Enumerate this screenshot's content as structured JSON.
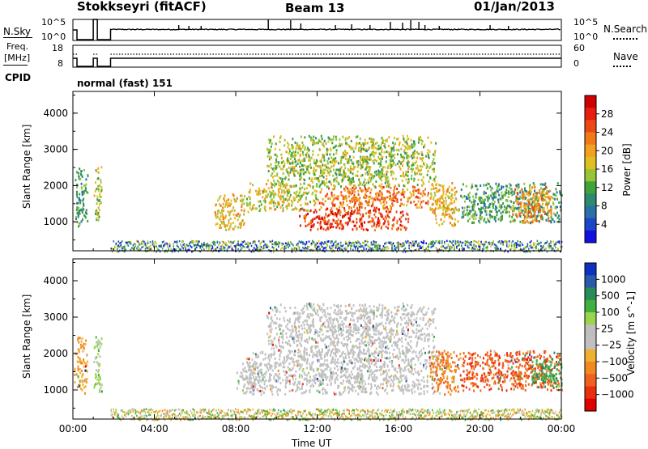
{
  "chart_data": [
    {
      "type": "line",
      "station": "Stokkseyri (fitACF)",
      "beam": "Beam 13",
      "date": "01/Jan/2013",
      "left_label": "N.Sky",
      "left_ticks": [
        "10^5",
        "10^0"
      ],
      "right_label": "N.Search",
      "right_ticks": [
        "10^5",
        "10^0"
      ],
      "gaps_hours": [
        [
          0.0,
          0.2
        ],
        [
          1.0,
          1.85
        ]
      ]
    },
    {
      "type": "line",
      "left_label_lines": [
        "Freq.",
        "[MHz]"
      ],
      "left_ticks": [
        "18",
        "8"
      ],
      "right_label": "Nave",
      "right_ticks": [
        "60",
        "0"
      ],
      "gaps_hours": [
        [
          0.0,
          0.2
        ],
        [
          1.0,
          1.85
        ]
      ]
    },
    {
      "type": "table",
      "label": "CPID",
      "value": "normal (fast) 151"
    },
    {
      "type": "heatmap",
      "quantity": "power",
      "ylabel": "Slant Range [km]",
      "yticks": [
        "1000",
        "2000",
        "3000",
        "4000"
      ],
      "ylim": [
        200,
        4600
      ],
      "xlim_hours": [
        0,
        24
      ],
      "colorbar_label": "Power [dB]",
      "colorbar_ticks": [
        "4",
        "8",
        "12",
        "16",
        "20",
        "24",
        "28"
      ],
      "colorbar_colors": [
        "#1010e0",
        "#1a47c8",
        "#2a70a8",
        "#2e8a6e",
        "#3fa23a",
        "#98c43a",
        "#e0c020",
        "#f2a020",
        "#f07a18",
        "#ec4a12",
        "#e81e10",
        "#d00000"
      ],
      "echo_regions": [
        {
          "hours": [
            0.05,
            0.7
          ],
          "range_km": [
            900,
            2500
          ],
          "level": 10
        },
        {
          "hours": [
            1.0,
            1.4
          ],
          "range_km": [
            900,
            2550
          ],
          "level": 14
        },
        {
          "hours": [
            6.95,
            8.4
          ],
          "range_km": [
            800,
            1800
          ],
          "level": 18
        },
        {
          "hours": [
            8.5,
            12.0
          ],
          "range_km": [
            1300,
            2100
          ],
          "level": 16
        },
        {
          "hours": [
            11.0,
            16.5
          ],
          "range_km": [
            800,
            1400
          ],
          "level": 26
        },
        {
          "hours": [
            12.0,
            17.5
          ],
          "range_km": [
            1400,
            2000
          ],
          "level": 22
        },
        {
          "hours": [
            9.5,
            17.8
          ],
          "range_km": [
            2000,
            3400
          ],
          "level": 14
        },
        {
          "hours": [
            17.5,
            19.0
          ],
          "range_km": [
            900,
            2100
          ],
          "level": 18
        },
        {
          "hours": [
            19.0,
            24.0
          ],
          "range_km": [
            1000,
            2100
          ],
          "level": 10
        },
        {
          "hours": [
            21.5,
            23.5
          ],
          "range_km": [
            1000,
            2000
          ],
          "level": 20
        }
      ]
    },
    {
      "type": "heatmap",
      "quantity": "velocity",
      "ylabel": "Slant Range [km]",
      "yticks": [
        "1000",
        "2000",
        "3000",
        "4000"
      ],
      "ylim": [
        200,
        4600
      ],
      "xlim_hours": [
        0,
        24
      ],
      "xticks": [
        "00:00",
        "04:00",
        "08:00",
        "12:00",
        "16:00",
        "20:00",
        "00:00"
      ],
      "xlabel": "Time UT",
      "colorbar_label": "Velocity [m s^-1]",
      "colorbar_ticks": [
        "1000",
        "500",
        "100",
        "25",
        "−25",
        "−100",
        "−500",
        "−1000"
      ],
      "colorbar_colors": [
        "#1030c0",
        "#2a5aa8",
        "#2a8a5a",
        "#40b040",
        "#9ad44a",
        "#bebebe",
        "#c0c0c0",
        "#f0b030",
        "#f08a20",
        "#f06020",
        "#e83010",
        "#e00000"
      ],
      "echo_regions": [
        {
          "hours": [
            0.05,
            0.7
          ],
          "range_km": [
            900,
            2500
          ],
          "velocity": -200
        },
        {
          "hours": [
            1.0,
            1.4
          ],
          "range_km": [
            900,
            2550
          ],
          "velocity": 150
        },
        {
          "hours": [
            8.0,
            9.2
          ],
          "range_km": [
            900,
            1800
          ],
          "velocity": 0
        },
        {
          "hours": [
            8.5,
            18.0
          ],
          "range_km": [
            900,
            2100
          ],
          "velocity": 0
        },
        {
          "hours": [
            9.5,
            17.8
          ],
          "range_km": [
            2000,
            3400
          ],
          "velocity": 0
        },
        {
          "hours": [
            17.5,
            19.0
          ],
          "range_km": [
            900,
            2100
          ],
          "velocity": -300
        },
        {
          "hours": [
            19.0,
            24.0
          ],
          "range_km": [
            1000,
            2100
          ],
          "velocity": -400
        },
        {
          "hours": [
            22.5,
            24.0
          ],
          "range_km": [
            1100,
            1900
          ],
          "velocity": 300
        }
      ]
    }
  ]
}
